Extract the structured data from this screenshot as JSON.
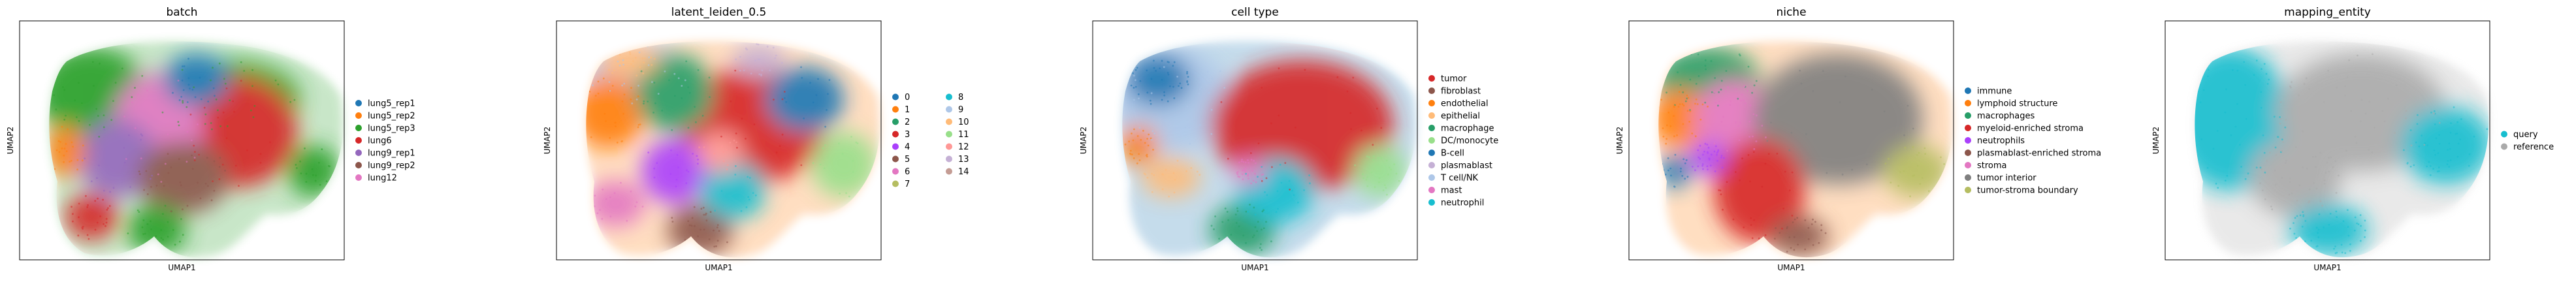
{
  "chart_data": [
    {
      "type": "scatter",
      "title": "batch",
      "xlabel": "UMAP1",
      "ylabel": "UMAP2",
      "grid": false,
      "legend_position": "right",
      "legend": [
        {
          "label": "lung5_rep1",
          "color": "#1f77b4"
        },
        {
          "label": "lung5_rep2",
          "color": "#ff7f0e"
        },
        {
          "label": "lung5_rep3",
          "color": "#2ca02c"
        },
        {
          "label": "lung6",
          "color": "#d62728"
        },
        {
          "label": "lung9_rep1",
          "color": "#9467bd"
        },
        {
          "label": "lung9_rep2",
          "color": "#8c564b"
        },
        {
          "label": "lung12",
          "color": "#e377c2"
        }
      ]
    },
    {
      "type": "scatter",
      "title": "latent_leiden_0.5",
      "xlabel": "UMAP1",
      "ylabel": "UMAP2",
      "grid": false,
      "legend_position": "right",
      "legend": [
        {
          "label": "0",
          "color": "#1f77b4"
        },
        {
          "label": "1",
          "color": "#ff7f0e"
        },
        {
          "label": "2",
          "color": "#279e68"
        },
        {
          "label": "3",
          "color": "#d62728"
        },
        {
          "label": "4",
          "color": "#aa40fc"
        },
        {
          "label": "5",
          "color": "#8c564b"
        },
        {
          "label": "6",
          "color": "#e377c2"
        },
        {
          "label": "7",
          "color": "#b5bd61"
        },
        {
          "label": "8",
          "color": "#17becf"
        },
        {
          "label": "9",
          "color": "#aec7e8"
        },
        {
          "label": "10",
          "color": "#ffbb78"
        },
        {
          "label": "11",
          "color": "#98df8a"
        },
        {
          "label": "12",
          "color": "#ff9896"
        },
        {
          "label": "13",
          "color": "#c5b0d5"
        },
        {
          "label": "14",
          "color": "#c49c94"
        }
      ]
    },
    {
      "type": "scatter",
      "title": "cell type",
      "xlabel": "UMAP1",
      "ylabel": "UMAP2",
      "grid": false,
      "legend_position": "right",
      "legend": [
        {
          "label": "tumor",
          "color": "#d62728"
        },
        {
          "label": "fibroblast",
          "color": "#8c564b"
        },
        {
          "label": "endothelial",
          "color": "#ff7f0e"
        },
        {
          "label": "epithelial",
          "color": "#ffbb78"
        },
        {
          "label": "macrophage",
          "color": "#279e68"
        },
        {
          "label": "DC/monocyte",
          "color": "#98df8a"
        },
        {
          "label": "B-cell",
          "color": "#1f77b4"
        },
        {
          "label": "plasmablast",
          "color": "#c5b0d5"
        },
        {
          "label": "T cell/NK",
          "color": "#aec7e8"
        },
        {
          "label": "mast",
          "color": "#e377c2"
        },
        {
          "label": "neutrophil",
          "color": "#17becf"
        }
      ]
    },
    {
      "type": "scatter",
      "title": "niche",
      "xlabel": "UMAP1",
      "ylabel": "UMAP2",
      "grid": false,
      "legend_position": "right",
      "legend": [
        {
          "label": "immune",
          "color": "#1f77b4"
        },
        {
          "label": "lymphoid structure",
          "color": "#ff7f0e"
        },
        {
          "label": "macrophages",
          "color": "#279e68"
        },
        {
          "label": "myeloid-enriched stroma",
          "color": "#d62728"
        },
        {
          "label": "neutrophils",
          "color": "#aa40fc"
        },
        {
          "label": "plasmablast-enriched stroma",
          "color": "#8c564b"
        },
        {
          "label": "stroma",
          "color": "#e377c2"
        },
        {
          "label": "tumor interior",
          "color": "#7f7f7f"
        },
        {
          "label": "tumor-stroma boundary",
          "color": "#b5bd61"
        }
      ]
    },
    {
      "type": "scatter",
      "title": "mapping_entity",
      "xlabel": "UMAP1",
      "ylabel": "UMAP2",
      "grid": false,
      "legend_position": "right",
      "legend": [
        {
          "label": "query",
          "color": "#17becf"
        },
        {
          "label": "reference",
          "color": "#aaaaaa"
        }
      ]
    }
  ]
}
